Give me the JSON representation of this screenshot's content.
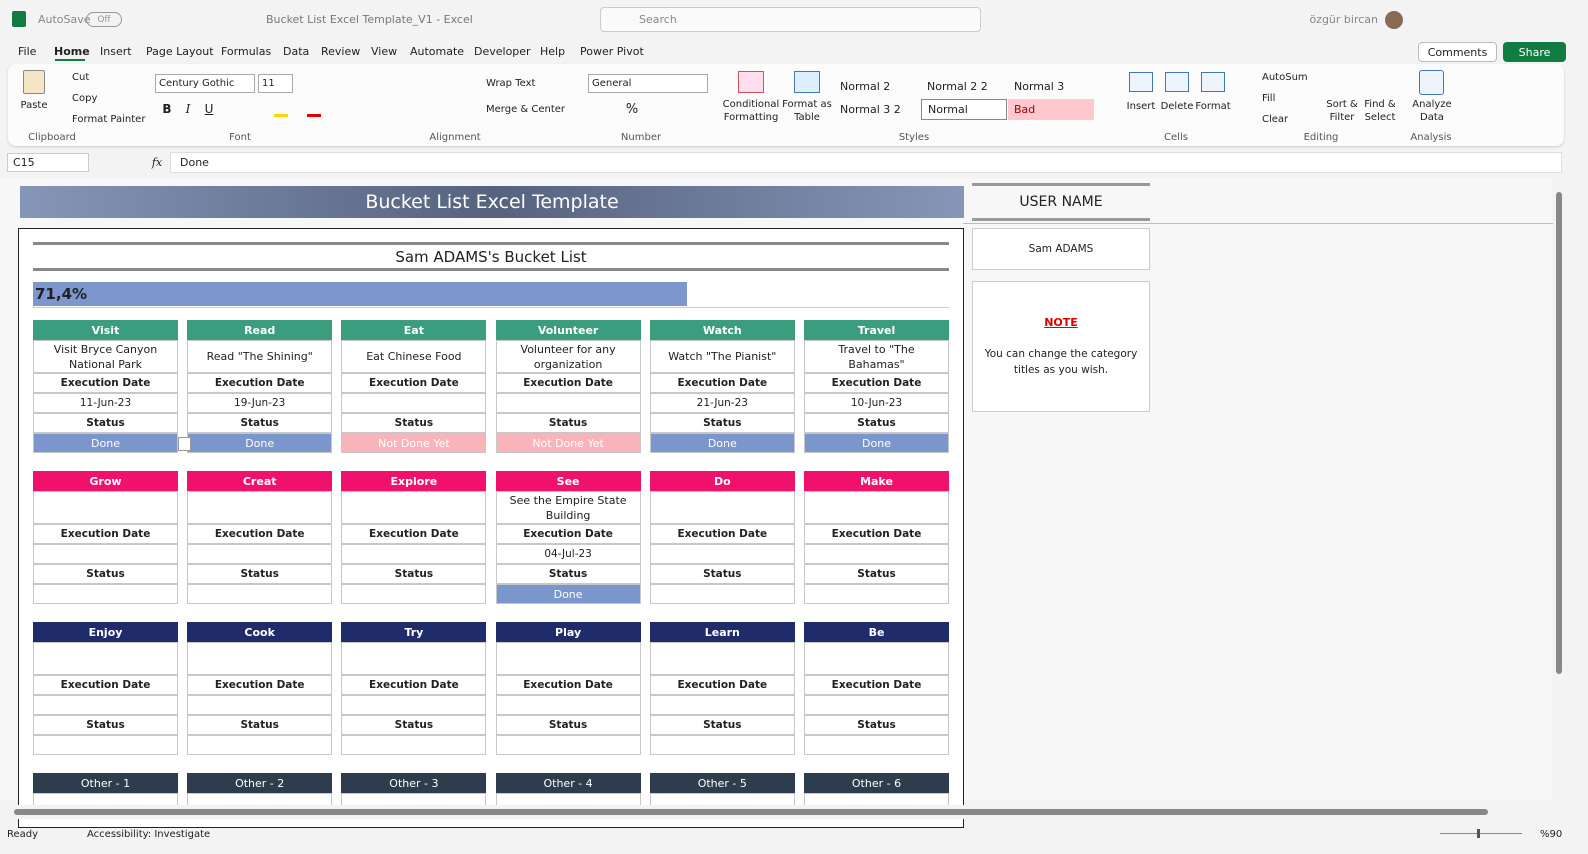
{
  "titlebar": {
    "autosave": "AutoSave",
    "toggle": "Off",
    "filename": "Bucket List Excel Template_V1  -  Excel",
    "search": "Search",
    "user": "özgür bircan"
  },
  "menu": {
    "tabs": [
      "File",
      "Home",
      "Insert",
      "Page Layout",
      "Formulas",
      "Data",
      "Review",
      "View",
      "Automate",
      "Developer",
      "Help",
      "Power Pivot"
    ],
    "comments": "Comments",
    "share": "Share"
  },
  "ribbon": {
    "clipboard": {
      "paste": "Paste",
      "cut": "Cut",
      "copy": "Copy",
      "format_painter": "Format Painter",
      "label": "Clipboard"
    },
    "font": {
      "name": "Century Gothic",
      "size": "11",
      "buttons": [
        "B",
        "I",
        "U"
      ],
      "label": "Font"
    },
    "alignment": {
      "wrap_text": "Wrap Text",
      "merge": "Merge & Center",
      "label": "Alignment"
    },
    "number": {
      "format": "General",
      "percent": "%",
      "label": "Number"
    },
    "styles": {
      "conditional": "Conditional Formatting",
      "format_table": "Format as Table",
      "cells": [
        "Normal 2",
        "Normal 2 2",
        "Normal 3",
        "Normal 3 2",
        "Normal",
        "Bad"
      ],
      "label": "Styles"
    },
    "cells": {
      "insert": "Insert",
      "delete": "Delete",
      "format": "Format",
      "label": "Cells"
    },
    "editing": {
      "autosum": "AutoSum",
      "fill": "Fill",
      "clear": "Clear",
      "sort": "Sort & Filter",
      "find": "Find & Select",
      "label": "Editing"
    },
    "analysis": {
      "analyze": "Analyze Data",
      "label": "Analysis"
    }
  },
  "formula_bar": {
    "name_box": "C15",
    "fx": "fx",
    "formula": "Done"
  },
  "sheet": {
    "title": "Bucket List Excel Template",
    "list_title": "Sam ADAMS's Bucket List",
    "progress": {
      "value": 71.4,
      "label": "71,4%",
      "range": [
        0,
        100
      ]
    },
    "exec_label": "Execution Date",
    "status_label": "Status",
    "rows": [
      {
        "color": "#3a9d7d",
        "cards": [
          {
            "category": "Visit",
            "item": "Visit Bryce Canyon National Park",
            "date": "11-Jun-23",
            "status": "Done",
            "status_color": "#7b96cc"
          },
          {
            "category": "Read",
            "item": "Read \"The Shining\"",
            "date": "19-Jun-23",
            "status": "Done",
            "status_color": "#7b96cc"
          },
          {
            "category": "Eat",
            "item": "Eat Chinese Food",
            "date": null,
            "status": "Not Done Yet",
            "status_color": "#f8b4b8"
          },
          {
            "category": "Volunteer",
            "item": "Volunteer for any organization",
            "date": null,
            "status": "Not Done Yet",
            "status_color": "#f8b4b8"
          },
          {
            "category": "Watch",
            "item": "Watch \"The Pianist\"",
            "date": "21-Jun-23",
            "status": "Done",
            "status_color": "#7b96cc"
          },
          {
            "category": "Travel",
            "item": "Travel to \"The Bahamas\"",
            "date": "10-Jun-23",
            "status": "Done",
            "status_color": "#7b96cc"
          }
        ]
      },
      {
        "color": "#f0116c",
        "cards": [
          {
            "category": "Grow",
            "item": null,
            "date": null,
            "status": null,
            "status_color": null
          },
          {
            "category": "Creat",
            "item": null,
            "date": null,
            "status": null,
            "status_color": null
          },
          {
            "category": "Explore",
            "item": null,
            "date": null,
            "status": null,
            "status_color": null
          },
          {
            "category": "See",
            "item": "See the Empire State Building",
            "date": "04-Jul-23",
            "status": "Done",
            "status_color": "#7b96cc"
          },
          {
            "category": "Do",
            "item": null,
            "date": null,
            "status": null,
            "status_color": null
          },
          {
            "category": "Make",
            "item": null,
            "date": null,
            "status": null,
            "status_color": null
          }
        ]
      },
      {
        "color": "#1f2b6b",
        "cards": [
          {
            "category": "Enjoy",
            "item": null,
            "date": null,
            "status": null,
            "status_color": null
          },
          {
            "category": "Cook",
            "item": null,
            "date": null,
            "status": null,
            "status_color": null
          },
          {
            "category": "Try",
            "item": null,
            "date": null,
            "status": null,
            "status_color": null
          },
          {
            "category": "Play",
            "item": null,
            "date": null,
            "status": null,
            "status_color": null
          },
          {
            "category": "Learn",
            "item": null,
            "date": null,
            "status": null,
            "status_color": null
          },
          {
            "category": "Be",
            "item": null,
            "date": null,
            "status": null,
            "status_color": null
          }
        ]
      },
      {
        "color": "#2e3d4d",
        "cards": [
          {
            "category": "Other - 1"
          },
          {
            "category": "Other - 2"
          },
          {
            "category": "Other - 3"
          },
          {
            "category": "Other - 4"
          },
          {
            "category": "Other - 5"
          },
          {
            "category": "Other - 6"
          }
        ]
      }
    ],
    "side": {
      "user_header": "USER NAME",
      "user": "Sam ADAMS",
      "note_title": "NOTE",
      "note": "You can change the category titles as you wish."
    }
  },
  "status_bar": {
    "ready": "Ready",
    "accessibility": "Accessibility: Investigate",
    "zoom": "%90"
  }
}
